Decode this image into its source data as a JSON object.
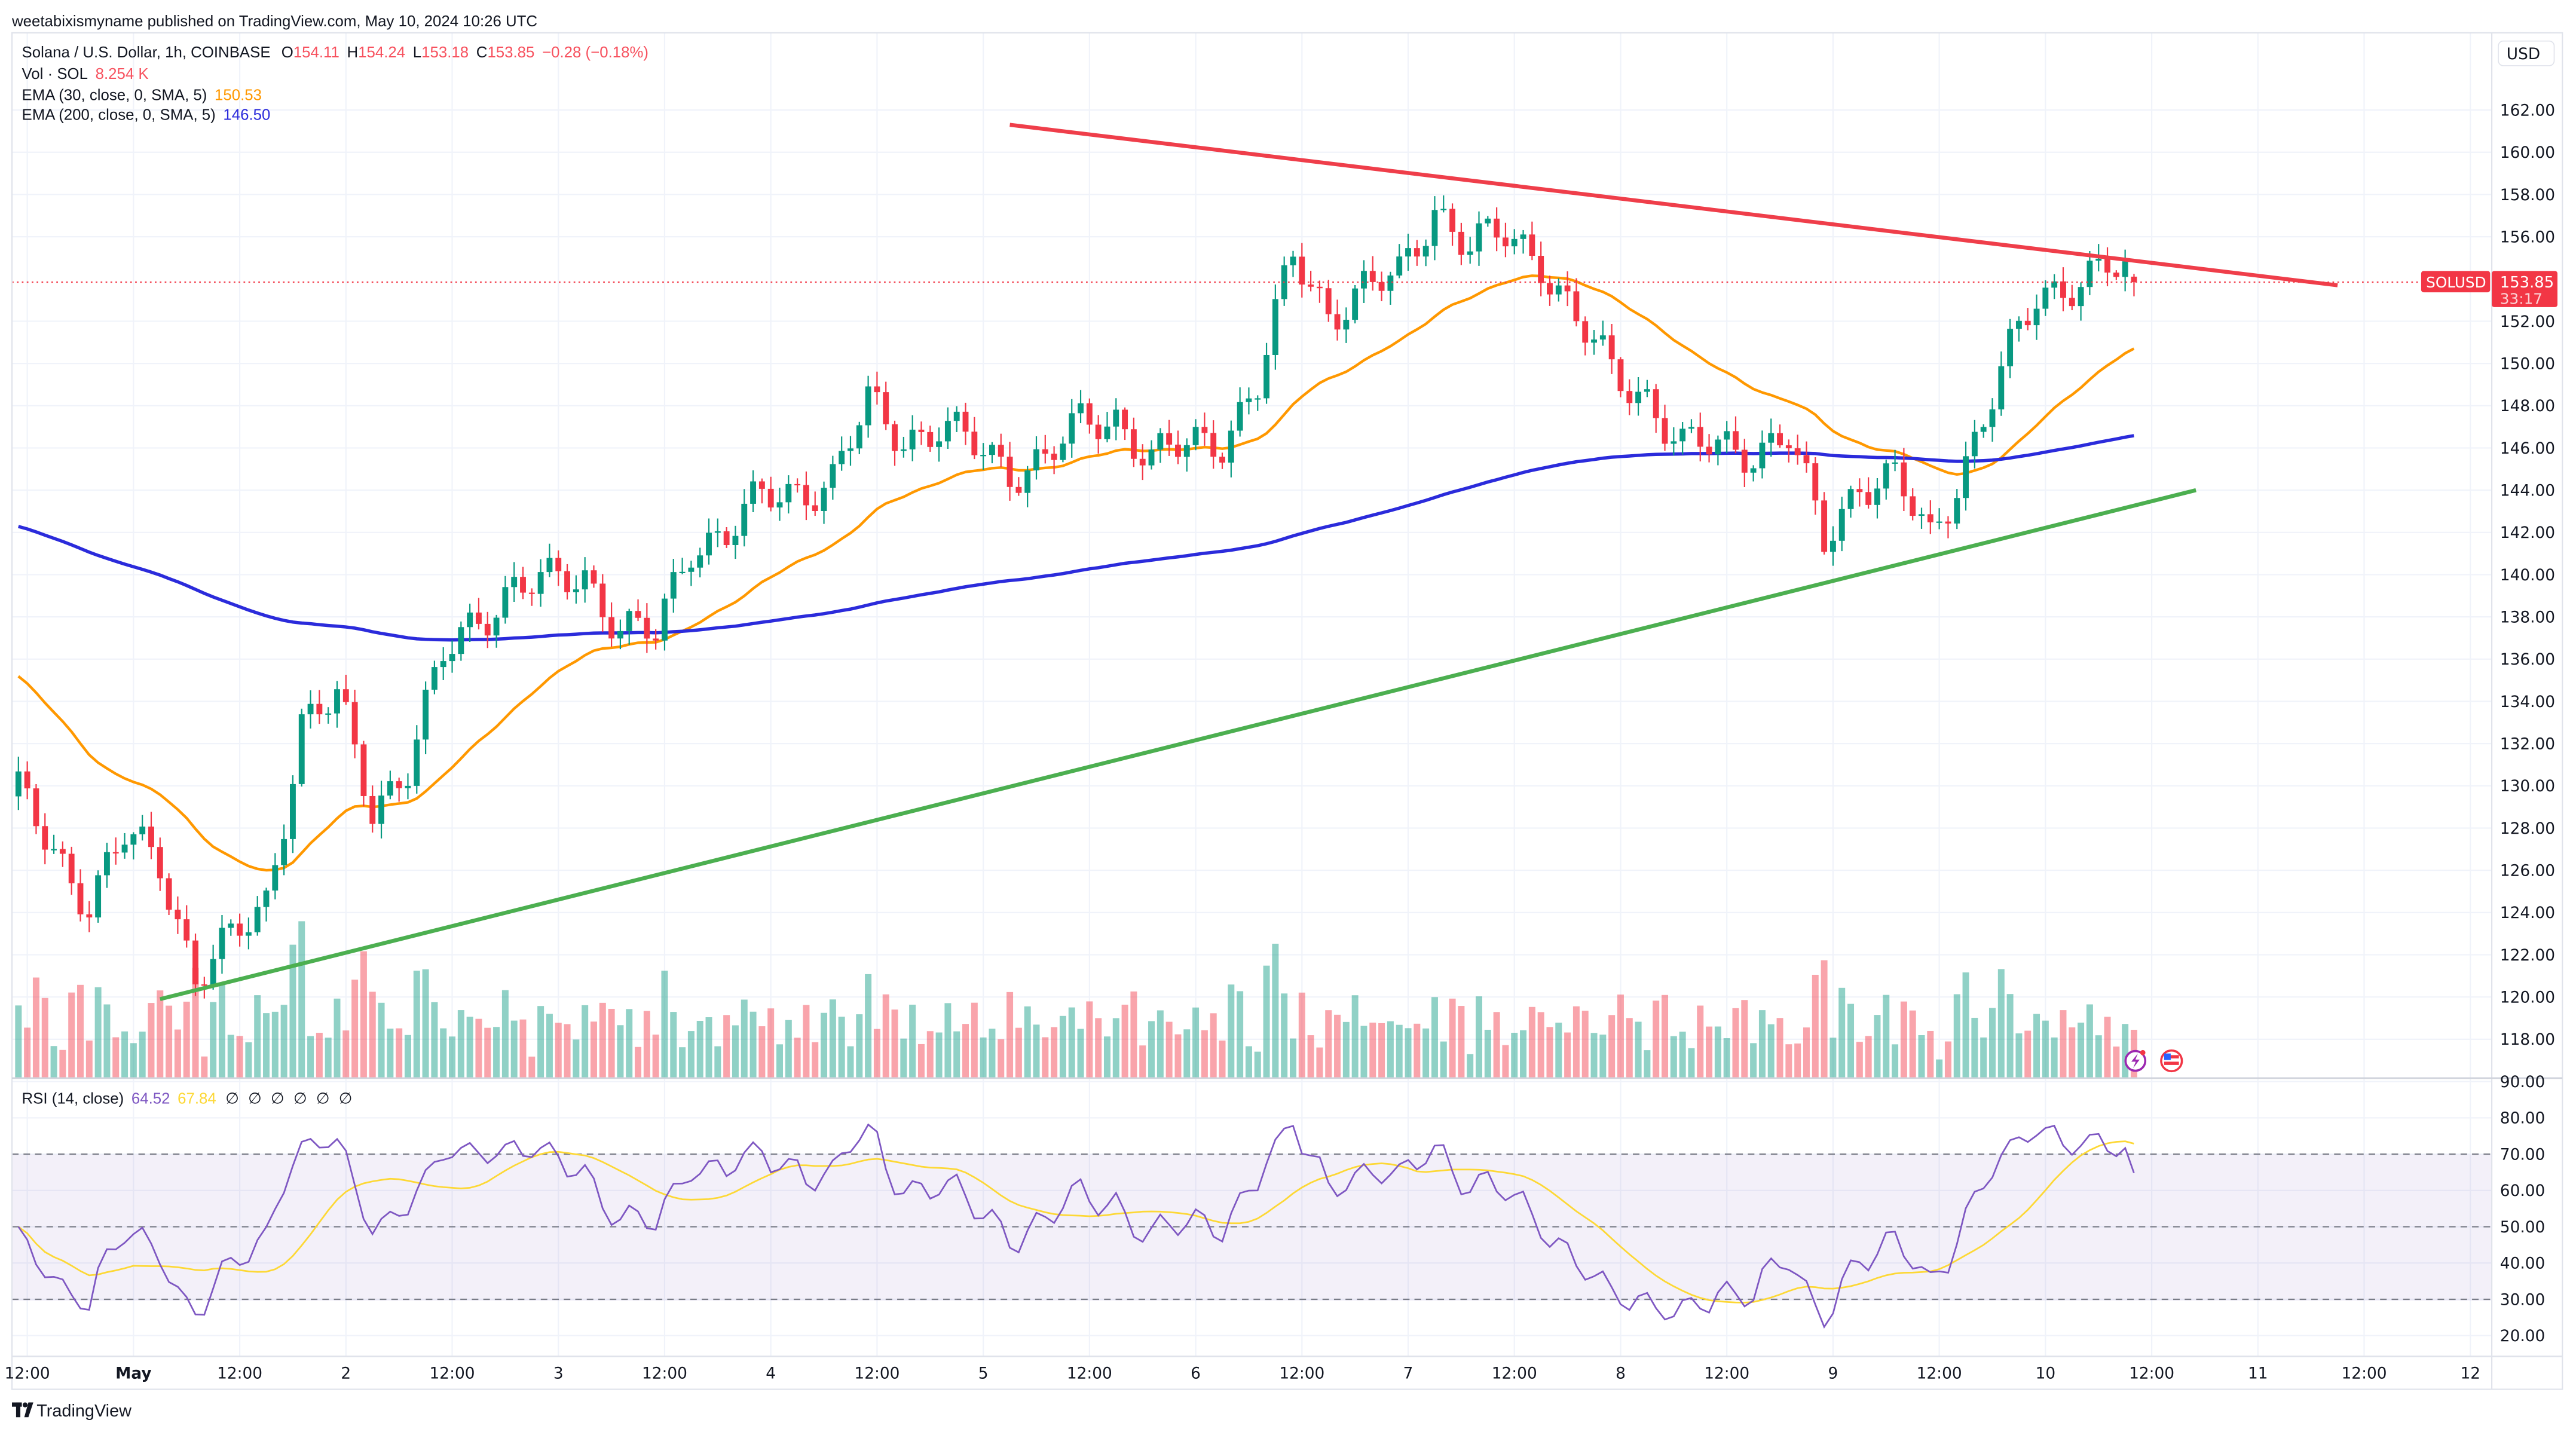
{
  "header": {
    "publisher_line": "weetabixismyname published on TradingView.com, May 10, 2024 10:26 UTC"
  },
  "legend": {
    "symbol": "Solana / U.S. Dollar, 1h, COINBASE",
    "o_label": "O",
    "o": "154.11",
    "h_label": "H",
    "h": "154.24",
    "l_label": "L",
    "l": "153.18",
    "c_label": "C",
    "c": "153.85",
    "change": "−0.28 (−0.18%)",
    "vol_label": "Vol · SOL",
    "vol": "8.254 K",
    "ema30_label": "EMA (30, close, 0, SMA, 5)",
    "ema30": "150.53",
    "ema200_label": "EMA (200, close, 0, SMA, 5)",
    "ema200": "146.50"
  },
  "rsi_legend": {
    "label": "RSI (14, close)",
    "value": "64.52",
    "ma": "67.84",
    "na": [
      "∅",
      "∅",
      "∅",
      "∅",
      "∅",
      "∅"
    ]
  },
  "price_axis": {
    "currency": "USD",
    "ticks": [
      "162.00",
      "160.00",
      "158.00",
      "156.00",
      "152.00",
      "150.00",
      "148.00",
      "146.00",
      "144.00",
      "142.00",
      "140.00",
      "138.00",
      "136.00",
      "134.00",
      "132.00",
      "130.00",
      "128.00",
      "126.00",
      "124.00",
      "122.00",
      "120.00",
      "118.00"
    ],
    "symbol_tag": "SOLUSD",
    "last_price": "153.85",
    "countdown": "33:17"
  },
  "rsi_axis": {
    "ticks": [
      "90.00",
      "80.00",
      "70.00",
      "60.00",
      "50.00",
      "40.00",
      "30.00",
      "20.00"
    ]
  },
  "time_axis": {
    "ticks": [
      {
        "label": "12:00",
        "time": "2024-04-30 12:00",
        "bold": false
      },
      {
        "label": "May",
        "time": "2024-05-01 00:00",
        "bold": true
      },
      {
        "label": "12:00",
        "time": "2024-05-01 12:00",
        "bold": false
      },
      {
        "label": "2",
        "time": "2024-05-02 00:00",
        "bold": false
      },
      {
        "label": "12:00",
        "time": "2024-05-02 12:00",
        "bold": false
      },
      {
        "label": "3",
        "time": "2024-05-03 00:00",
        "bold": false
      },
      {
        "label": "12:00",
        "time": "2024-05-03 12:00",
        "bold": false
      },
      {
        "label": "4",
        "time": "2024-05-04 00:00",
        "bold": false
      },
      {
        "label": "12:00",
        "time": "2024-05-04 12:00",
        "bold": false
      },
      {
        "label": "5",
        "time": "2024-05-05 00:00",
        "bold": false
      },
      {
        "label": "12:00",
        "time": "2024-05-05 12:00",
        "bold": false
      },
      {
        "label": "6",
        "time": "2024-05-06 00:00",
        "bold": false
      },
      {
        "label": "12:00",
        "time": "2024-05-06 12:00",
        "bold": false
      },
      {
        "label": "7",
        "time": "2024-05-07 00:00",
        "bold": false
      },
      {
        "label": "12:00",
        "time": "2024-05-07 12:00",
        "bold": false
      },
      {
        "label": "8",
        "time": "2024-05-08 00:00",
        "bold": false
      },
      {
        "label": "12:00",
        "time": "2024-05-08 12:00",
        "bold": false
      },
      {
        "label": "9",
        "time": "2024-05-09 00:00",
        "bold": false
      },
      {
        "label": "12:00",
        "time": "2024-05-09 12:00",
        "bold": false
      },
      {
        "label": "10",
        "time": "2024-05-10 00:00",
        "bold": false
      },
      {
        "label": "12:00",
        "time": "2024-05-10 12:00",
        "bold": false
      },
      {
        "label": "11",
        "time": "2024-05-11 00:00",
        "bold": false
      },
      {
        "label": "12:00",
        "time": "2024-05-11 12:00",
        "bold": false
      },
      {
        "label": "12",
        "time": "2024-05-12 00:00",
        "bold": false
      }
    ]
  },
  "footer": {
    "brand": "TradingView"
  },
  "icons": {
    "events": [
      "lightning-event-icon",
      "us-flag-event-icon"
    ],
    "logo": "tradingview-logo-icon"
  },
  "colors": {
    "up": "#089981",
    "down": "#f23645",
    "ema30": "#ff9800",
    "ema200": "#2b2bdb",
    "rsi": "#7e57c2",
    "rsi_ma": "#fdd835",
    "resistance": "#ef3e4a",
    "support": "#4caf50"
  },
  "chart_data": {
    "type": "candlestick",
    "interval": "1h",
    "start": "2024-04-30 11:00",
    "step_hours": 4,
    "closes": [
      129.5,
      127,
      124.5,
      127.5,
      126.5,
      121,
      122.5,
      124.5,
      133,
      134,
      129,
      131,
      136,
      138,
      139.5,
      139.5,
      140,
      137.5,
      137,
      141.5,
      142,
      143.5,
      144,
      144.5,
      148,
      146.5,
      147,
      146,
      145,
      145.5,
      147,
      147.5,
      145.5,
      146,
      146.5,
      149,
      155,
      152.5,
      153.5,
      154,
      157.5,
      155.5,
      156,
      155,
      152,
      149.5,
      148.5,
      146,
      146,
      146,
      146.5,
      141.5,
      144.5,
      144.5,
      141.5,
      145.5,
      149.5,
      153,
      154,
      154.5
    ],
    "last_candle": {
      "time": "2024-05-10 10:00",
      "open": 154.11,
      "high": 154.24,
      "low": 153.18,
      "close": 153.85
    },
    "ema30_start": 135.5,
    "ema200_start": 142.4,
    "ylim": [
      117,
      163
    ],
    "rsi_ylim": [
      15,
      93
    ],
    "trendlines": [
      {
        "role": "resistance",
        "from": {
          "time": "2024-05-05 03:00",
          "price": 161.3
        },
        "to": {
          "time": "2024-05-11 09:00",
          "price": 153.7
        }
      },
      {
        "role": "support",
        "from": {
          "time": "2024-05-01 03:00",
          "price": 119.9
        },
        "to": {
          "time": "2024-05-10 17:00",
          "price": 144.0
        }
      }
    ],
    "rsi_levels": [
      70,
      50,
      30
    ]
  }
}
